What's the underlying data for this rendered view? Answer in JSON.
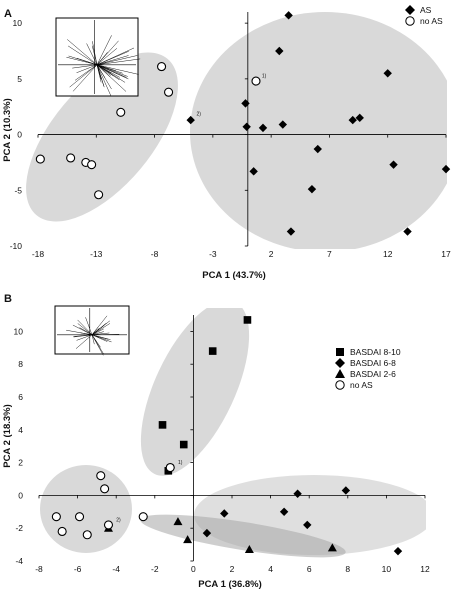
{
  "chart_data": [
    {
      "panel_label": "A",
      "type": "scatter",
      "xlabel": "PCA 1 (43.7%)",
      "ylabel": "PCA 2 (10.3%)",
      "xlim": [
        -18,
        17
      ],
      "ylim": [
        -10,
        11
      ],
      "xticks": [
        -18,
        -13,
        -8,
        -3,
        2,
        7,
        12,
        17
      ],
      "yticks": [
        10,
        5,
        0,
        -5,
        -10
      ],
      "series": [
        {
          "name": "AS",
          "marker": "diamond",
          "points": [
            [
              3.5,
              10.7
            ],
            [
              2.7,
              7.5
            ],
            [
              12,
              5.5
            ],
            [
              -0.2,
              2.8
            ],
            [
              -4.9,
              1.3
            ],
            [
              9.6,
              1.5
            ],
            [
              9,
              1.3
            ],
            [
              3,
              0.9
            ],
            [
              -0.1,
              0.7
            ],
            [
              1.3,
              0.6
            ],
            [
              6,
              -1.3
            ],
            [
              12.5,
              -2.7
            ],
            [
              0.5,
              -3.3
            ],
            [
              17,
              -3.1
            ],
            [
              5.5,
              -4.9
            ],
            [
              3.7,
              -8.7
            ],
            [
              13.7,
              -8.7
            ]
          ]
        },
        {
          "name": "no AS",
          "marker": "open-circle",
          "points": [
            [
              -7.4,
              6.1
            ],
            [
              0.7,
              4.8
            ],
            [
              -6.8,
              3.8
            ],
            [
              -10.9,
              2
            ],
            [
              -17.8,
              -2.2
            ],
            [
              -15.2,
              -2.1
            ],
            [
              -13.9,
              -2.5
            ],
            [
              -13.4,
              -2.7
            ],
            [
              -12.8,
              -5.4
            ]
          ]
        }
      ],
      "annotations": [
        {
          "text": "1)",
          "x": 1.2,
          "y": 5.1
        },
        {
          "text": "2)",
          "x": -4.4,
          "y": 1.7
        }
      ],
      "inset": "loadings-plot"
    },
    {
      "panel_label": "B",
      "type": "scatter",
      "xlabel": "PCA 1 (36.8%)",
      "ylabel": "PCA 2 (18.3%)",
      "xlim": [
        -8,
        12
      ],
      "ylim": [
        -4,
        11
      ],
      "xticks": [
        -8,
        -6,
        -4,
        -2,
        0,
        2,
        4,
        6,
        8,
        10,
        12
      ],
      "yticks": [
        10,
        8,
        6,
        4,
        2,
        0,
        -2,
        -4
      ],
      "series": [
        {
          "name": "BASDAI 8-10",
          "marker": "square",
          "points": [
            [
              2.8,
              10.7
            ],
            [
              1,
              8.8
            ],
            [
              -1.6,
              4.3
            ],
            [
              -0.5,
              3.1
            ],
            [
              -1.3,
              1.5
            ]
          ]
        },
        {
          "name": "BASDAI 6-8",
          "marker": "diamond",
          "points": [
            [
              7.9,
              0.3
            ],
            [
              5.4,
              0.1
            ],
            [
              1.6,
              -1.1
            ],
            [
              4.7,
              -1
            ],
            [
              5.9,
              -1.8
            ],
            [
              0.7,
              -2.3
            ],
            [
              10.6,
              -3.4
            ]
          ]
        },
        {
          "name": "BASDAI 2-6",
          "marker": "triangle",
          "points": [
            [
              -0.8,
              -1.6
            ],
            [
              -0.3,
              -2.7
            ],
            [
              2.9,
              -3.3
            ],
            [
              7.2,
              -3.2
            ],
            [
              -4.4,
              -2
            ]
          ]
        },
        {
          "name": "no AS",
          "marker": "open-circle",
          "points": [
            [
              -4.8,
              1.2
            ],
            [
              -4.6,
              0.4
            ],
            [
              -7.1,
              -1.3
            ],
            [
              -5.9,
              -1.3
            ],
            [
              -2.6,
              -1.3
            ],
            [
              -4.4,
              -1.8
            ],
            [
              -6.8,
              -2.2
            ],
            [
              -5.5,
              -2.4
            ],
            [
              -1.2,
              1.7
            ]
          ]
        }
      ],
      "annotations": [
        {
          "text": "1)",
          "x": -0.8,
          "y": 1.9
        },
        {
          "text": "2)",
          "x": -4,
          "y": -1.6
        }
      ],
      "inset": "loadings-plot"
    }
  ]
}
